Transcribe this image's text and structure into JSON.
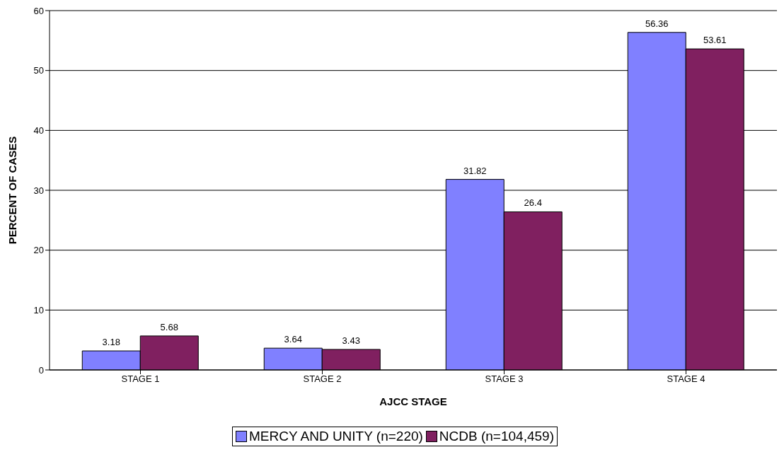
{
  "chart_data": {
    "type": "bar",
    "xlabel": "AJCC STAGE",
    "ylabel": "PERCENT OF CASES",
    "categories": [
      "STAGE 1",
      "STAGE 2",
      "STAGE 3",
      "STAGE 4"
    ],
    "series": [
      {
        "name": "MERCY AND UNITY (n=220)",
        "color": "#8080ff",
        "values": [
          3.18,
          3.64,
          31.82,
          56.36
        ]
      },
      {
        "name": "NCDB (n=104,459)",
        "color": "#802060",
        "values": [
          5.68,
          3.43,
          26.4,
          53.61
        ]
      }
    ],
    "ylim": [
      0,
      60
    ],
    "yticks": [
      0,
      10,
      20,
      30,
      40,
      50,
      60
    ],
    "grid": "y",
    "legend": "bottom",
    "data_labels": true
  }
}
